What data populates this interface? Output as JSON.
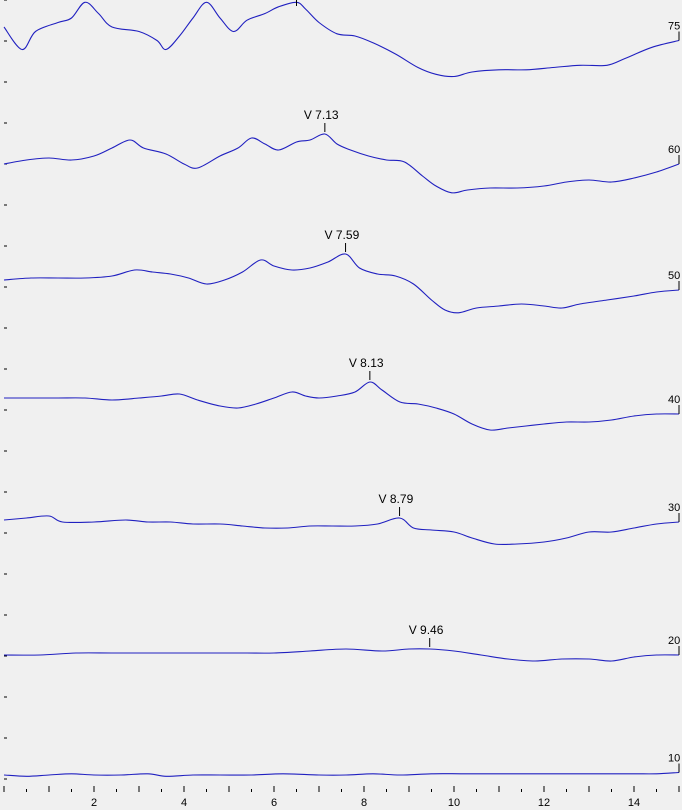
{
  "chart_data": {
    "type": "line",
    "title": "",
    "xlabel": "",
    "ylabel": "",
    "xlim": [
      0,
      15
    ],
    "x_ticks": [
      2,
      4,
      6,
      8,
      10,
      12,
      14
    ],
    "color": "#2020c0",
    "background": "#f0f0f0",
    "series": [
      {
        "name": "75",
        "peak_x": null,
        "peak_label": null,
        "points": [
          [
            0,
            0.4
          ],
          [
            0.4,
            -0.1
          ],
          [
            0.7,
            0.3
          ],
          [
            1.2,
            0.5
          ],
          [
            1.5,
            0.6
          ],
          [
            1.8,
            0.95
          ],
          [
            2.1,
            0.7
          ],
          [
            2.4,
            0.4
          ],
          [
            3,
            0.3
          ],
          [
            3.4,
            0.1
          ],
          [
            3.6,
            -0.1
          ],
          [
            3.9,
            0.2
          ],
          [
            4.2,
            0.6
          ],
          [
            4.5,
            0.95
          ],
          [
            4.8,
            0.6
          ],
          [
            5.1,
            0.3
          ],
          [
            5.4,
            0.55
          ],
          [
            5.8,
            0.7
          ],
          [
            6.1,
            0.85
          ],
          [
            6.5,
            0.95
          ],
          [
            6.7,
            0.8
          ],
          [
            7,
            0.5
          ],
          [
            7.4,
            0.25
          ],
          [
            7.8,
            0.2
          ],
          [
            8.2,
            0.05
          ],
          [
            8.7,
            -0.2
          ],
          [
            9.2,
            -0.5
          ],
          [
            9.6,
            -0.65
          ],
          [
            10,
            -0.7
          ],
          [
            10.4,
            -0.6
          ],
          [
            11,
            -0.55
          ],
          [
            11.6,
            -0.55
          ],
          [
            12.2,
            -0.5
          ],
          [
            12.8,
            -0.45
          ],
          [
            13.4,
            -0.45
          ],
          [
            13.8,
            -0.3
          ],
          [
            14.4,
            -0.05
          ],
          [
            15,
            0.1
          ]
        ]
      },
      {
        "name": "60",
        "peak_x": 7.13,
        "peak_label": "V  7.13",
        "points": [
          [
            0,
            0.1
          ],
          [
            0.5,
            0.2
          ],
          [
            1,
            0.25
          ],
          [
            1.5,
            0.2
          ],
          [
            2,
            0.3
          ],
          [
            2.4,
            0.5
          ],
          [
            2.8,
            0.7
          ],
          [
            3.1,
            0.5
          ],
          [
            3.6,
            0.35
          ],
          [
            4,
            0.1
          ],
          [
            4.3,
            0.0
          ],
          [
            4.8,
            0.3
          ],
          [
            5.2,
            0.5
          ],
          [
            5.5,
            0.75
          ],
          [
            5.8,
            0.6
          ],
          [
            6.1,
            0.45
          ],
          [
            6.5,
            0.65
          ],
          [
            6.8,
            0.7
          ],
          [
            7.13,
            0.85
          ],
          [
            7.4,
            0.6
          ],
          [
            7.7,
            0.45
          ],
          [
            8.1,
            0.3
          ],
          [
            8.5,
            0.2
          ],
          [
            8.9,
            0.15
          ],
          [
            9.3,
            -0.2
          ],
          [
            9.6,
            -0.45
          ],
          [
            9.95,
            -0.62
          ],
          [
            10.3,
            -0.55
          ],
          [
            10.8,
            -0.5
          ],
          [
            11.4,
            -0.5
          ],
          [
            12,
            -0.45
          ],
          [
            12.5,
            -0.35
          ],
          [
            13,
            -0.3
          ],
          [
            13.5,
            -0.35
          ],
          [
            14,
            -0.25
          ],
          [
            14.5,
            -0.1
          ],
          [
            15,
            0.1
          ]
        ]
      },
      {
        "name": "50",
        "peak_x": 7.59,
        "peak_label": "V  7.59",
        "points": [
          [
            0,
            0.2
          ],
          [
            0.6,
            0.25
          ],
          [
            1.2,
            0.25
          ],
          [
            1.8,
            0.25
          ],
          [
            2.4,
            0.3
          ],
          [
            2.9,
            0.45
          ],
          [
            3.3,
            0.4
          ],
          [
            3.7,
            0.35
          ],
          [
            4.1,
            0.25
          ],
          [
            4.5,
            0.1
          ],
          [
            4.9,
            0.2
          ],
          [
            5.3,
            0.4
          ],
          [
            5.7,
            0.7
          ],
          [
            6,
            0.55
          ],
          [
            6.4,
            0.45
          ],
          [
            6.8,
            0.5
          ],
          [
            7.2,
            0.65
          ],
          [
            7.59,
            0.85
          ],
          [
            7.9,
            0.5
          ],
          [
            8.3,
            0.35
          ],
          [
            8.7,
            0.3
          ],
          [
            9.1,
            0.1
          ],
          [
            9.5,
            -0.3
          ],
          [
            9.8,
            -0.55
          ],
          [
            10.1,
            -0.62
          ],
          [
            10.5,
            -0.5
          ],
          [
            11,
            -0.45
          ],
          [
            11.5,
            -0.4
          ],
          [
            12,
            -0.45
          ],
          [
            12.4,
            -0.5
          ],
          [
            12.8,
            -0.4
          ],
          [
            13.4,
            -0.3
          ],
          [
            14,
            -0.2
          ],
          [
            14.5,
            -0.1
          ],
          [
            15,
            -0.05
          ]
        ]
      },
      {
        "name": "40",
        "peak_x": 8.13,
        "peak_label": "V  8.13",
        "points": [
          [
            0,
            0.3
          ],
          [
            0.6,
            0.3
          ],
          [
            1.2,
            0.3
          ],
          [
            1.8,
            0.3
          ],
          [
            2.4,
            0.25
          ],
          [
            3,
            0.3
          ],
          [
            3.5,
            0.35
          ],
          [
            3.9,
            0.4
          ],
          [
            4.3,
            0.25
          ],
          [
            4.8,
            0.1
          ],
          [
            5.2,
            0.05
          ],
          [
            5.6,
            0.15
          ],
          [
            6,
            0.3
          ],
          [
            6.4,
            0.45
          ],
          [
            6.7,
            0.35
          ],
          [
            7,
            0.3
          ],
          [
            7.4,
            0.35
          ],
          [
            7.8,
            0.45
          ],
          [
            8.13,
            0.7
          ],
          [
            8.4,
            0.5
          ],
          [
            8.8,
            0.2
          ],
          [
            9.2,
            0.15
          ],
          [
            9.6,
            0.05
          ],
          [
            10,
            -0.1
          ],
          [
            10.4,
            -0.35
          ],
          [
            10.8,
            -0.5
          ],
          [
            11.2,
            -0.45
          ],
          [
            11.6,
            -0.4
          ],
          [
            12,
            -0.35
          ],
          [
            12.5,
            -0.3
          ],
          [
            13,
            -0.3
          ],
          [
            13.5,
            -0.25
          ],
          [
            14,
            -0.15
          ],
          [
            14.5,
            -0.1
          ],
          [
            15,
            -0.1
          ]
        ]
      },
      {
        "name": "30",
        "peak_x": 8.79,
        "peak_label": "V  8.79",
        "points": [
          [
            0,
            0.25
          ],
          [
            0.5,
            0.3
          ],
          [
            1,
            0.35
          ],
          [
            1.3,
            0.2
          ],
          [
            2,
            0.2
          ],
          [
            2.7,
            0.25
          ],
          [
            3.2,
            0.2
          ],
          [
            3.7,
            0.2
          ],
          [
            4.2,
            0.15
          ],
          [
            4.8,
            0.15
          ],
          [
            5.3,
            0.1
          ],
          [
            5.8,
            0.05
          ],
          [
            6.3,
            0.05
          ],
          [
            6.8,
            0.1
          ],
          [
            7.3,
            0.1
          ],
          [
            7.8,
            0.1
          ],
          [
            8.3,
            0.15
          ],
          [
            8.79,
            0.3
          ],
          [
            9.1,
            0.05
          ],
          [
            9.5,
            0.0
          ],
          [
            10,
            -0.05
          ],
          [
            10.4,
            -0.2
          ],
          [
            10.9,
            -0.35
          ],
          [
            11.4,
            -0.35
          ],
          [
            12,
            -0.3
          ],
          [
            12.5,
            -0.2
          ],
          [
            13,
            -0.05
          ],
          [
            13.5,
            -0.05
          ],
          [
            14,
            0.05
          ],
          [
            14.5,
            0.15
          ],
          [
            15,
            0.2
          ]
        ]
      },
      {
        "name": "20",
        "peak_x": 9.46,
        "peak_label": "V  9.46",
        "points": [
          [
            0,
            0.0
          ],
          [
            0.8,
            0.0
          ],
          [
            1.6,
            0.05
          ],
          [
            2.4,
            0.05
          ],
          [
            3.2,
            0.05
          ],
          [
            4,
            0.05
          ],
          [
            4.8,
            0.05
          ],
          [
            5.4,
            0.05
          ],
          [
            6,
            0.05
          ],
          [
            6.8,
            0.1
          ],
          [
            7.6,
            0.15
          ],
          [
            8.4,
            0.1
          ],
          [
            9,
            0.15
          ],
          [
            9.46,
            0.15
          ],
          [
            10,
            0.1
          ],
          [
            10.6,
            0.0
          ],
          [
            11.2,
            -0.1
          ],
          [
            11.8,
            -0.15
          ],
          [
            12.4,
            -0.1
          ],
          [
            13,
            -0.1
          ],
          [
            13.5,
            -0.15
          ],
          [
            14,
            -0.05
          ],
          [
            14.5,
            0.0
          ],
          [
            15,
            0.0
          ]
        ]
      },
      {
        "name": "10",
        "peak_x": null,
        "peak_label": null,
        "points": [
          [
            0,
            0.0
          ],
          [
            0.5,
            -0.05
          ],
          [
            1,
            0.0
          ],
          [
            1.5,
            0.05
          ],
          [
            2,
            0.0
          ],
          [
            2.6,
            0.0
          ],
          [
            3.2,
            0.05
          ],
          [
            3.6,
            -0.05
          ],
          [
            4.2,
            0.0
          ],
          [
            4.8,
            0.0
          ],
          [
            5.5,
            0.0
          ],
          [
            6.2,
            0.05
          ],
          [
            7,
            0.0
          ],
          [
            7.6,
            0.0
          ],
          [
            8.2,
            0.05
          ],
          [
            8.8,
            0.0
          ],
          [
            9.5,
            0.05
          ],
          [
            10.2,
            0.05
          ],
          [
            11,
            0.05
          ],
          [
            11.8,
            0.05
          ],
          [
            12.5,
            0.05
          ],
          [
            13.2,
            0.05
          ],
          [
            14,
            0.05
          ],
          [
            14.5,
            0.05
          ],
          [
            15,
            0.1
          ]
        ]
      }
    ]
  }
}
